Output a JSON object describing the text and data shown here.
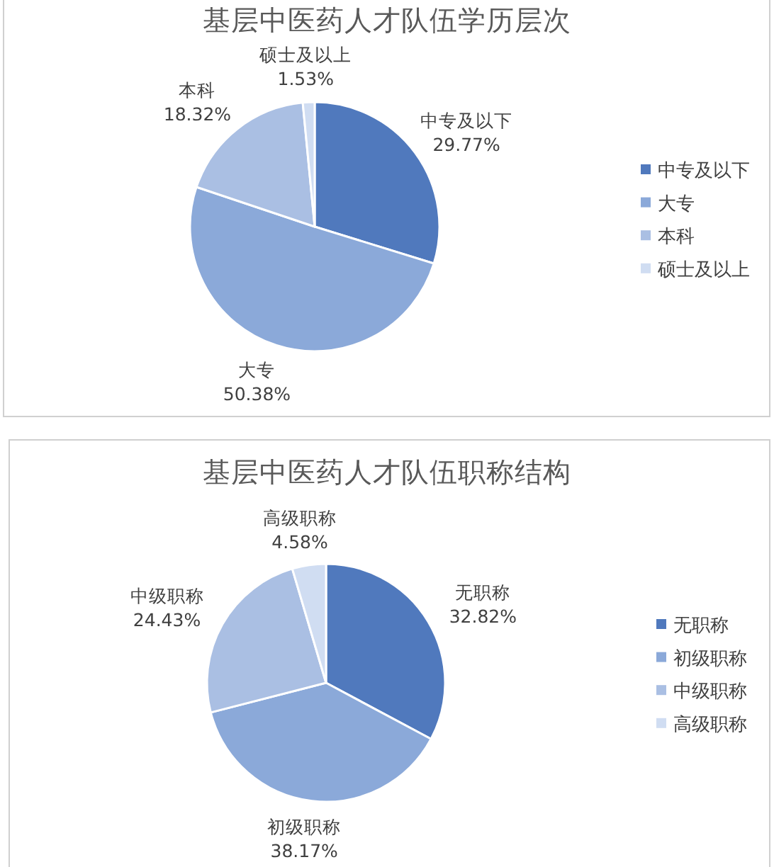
{
  "chart_data": [
    {
      "type": "pie",
      "title": "基层中医药人才队伍学历层次",
      "categories": [
        "中专及以下",
        "大专",
        "本科",
        "硕士及以上"
      ],
      "values": [
        29.77,
        50.38,
        18.32,
        1.53
      ],
      "colors": [
        "#5079bd",
        "#8ba9d9",
        "#aabfe3",
        "#d0ddf2"
      ],
      "value_labels": [
        "29.77%",
        "50.38%",
        "18.32%",
        "1.53%"
      ],
      "legend": "right"
    },
    {
      "type": "pie",
      "title": "基层中医药人才队伍职称结构",
      "categories": [
        "无职称",
        "初级职称",
        "中级职称",
        "高级职称"
      ],
      "values": [
        32.82,
        38.17,
        24.43,
        4.58
      ],
      "colors": [
        "#5079bd",
        "#8ba9d9",
        "#aabfe3",
        "#d0ddf2"
      ],
      "value_labels": [
        "32.82%",
        "38.17%",
        "24.43%",
        "4.58%"
      ],
      "legend": "right"
    }
  ]
}
